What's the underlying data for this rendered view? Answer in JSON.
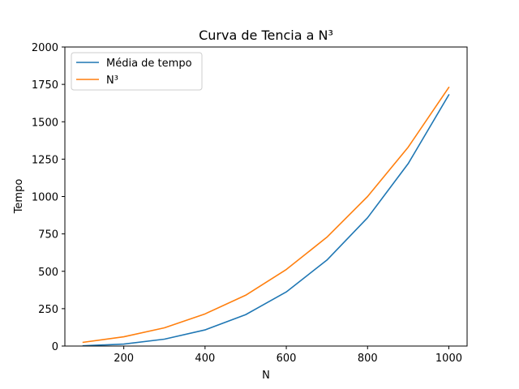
{
  "chart_data": {
    "type": "line",
    "title": "Curva de Tencia a N³",
    "xlabel": "N",
    "ylabel": "Tempo",
    "xlim": [
      55,
      1045
    ],
    "ylim": [
      0,
      2000
    ],
    "xticks": [
      200,
      400,
      600,
      800,
      1000
    ],
    "yticks": [
      0,
      250,
      500,
      750,
      1000,
      1250,
      1500,
      1750,
      2000
    ],
    "x": [
      100,
      200,
      300,
      400,
      500,
      600,
      700,
      800,
      900,
      1000
    ],
    "series": [
      {
        "name": "Média de tempo",
        "color": "#1f77b4",
        "values": [
          2,
          13,
          46,
          108,
          210,
          362,
          575,
          858,
          1220,
          1680
        ]
      },
      {
        "name": "N³",
        "color": "#ff7f0e",
        "values": [
          25,
          62,
          122,
          215,
          340,
          512,
          728,
          1000,
          1330,
          1730
        ]
      }
    ],
    "legend": "top-left",
    "grid": false
  }
}
